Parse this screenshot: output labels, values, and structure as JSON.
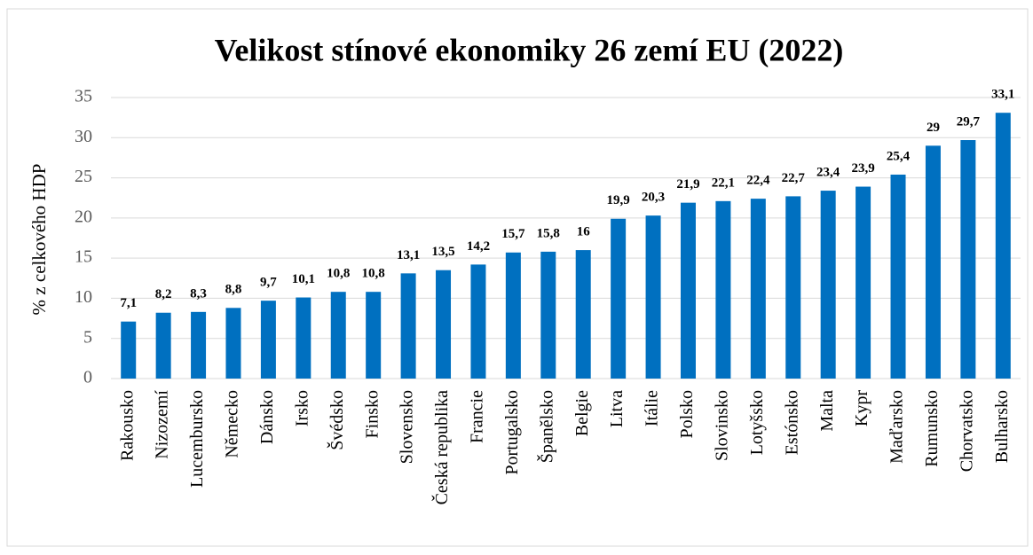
{
  "chart_data": {
    "type": "bar",
    "title": "Velikost stínové ekonomiky 26 zemí EU (2022)",
    "y_label": "% z celkového HDP",
    "categories": [
      "Rakousko",
      "Nizozemí",
      "Lucembursko",
      "Německo",
      "Dánsko",
      "Irsko",
      "Švédsko",
      "Finsko",
      "Slovensko",
      "Česká republika",
      "Francie",
      "Portugalsko",
      "Španělsko",
      "Belgie",
      "Litva",
      "Itálie",
      "Polsko",
      "Slovinsko",
      "Lotyšsko",
      "Estónsko",
      "Malta",
      "Kypr",
      "Maďarsko",
      "Rumunsko",
      "Chorvatsko",
      "Bulharsko"
    ],
    "values": [
      7.1,
      8.2,
      8.3,
      8.8,
      9.7,
      10.1,
      10.8,
      10.8,
      13.1,
      13.5,
      14.2,
      15.7,
      15.8,
      16,
      19.9,
      20.3,
      21.9,
      22.1,
      22.4,
      22.7,
      23.4,
      23.9,
      25.4,
      29,
      29.7,
      33.1
    ],
    "value_labels": [
      "7,1",
      "8,2",
      "8,3",
      "8,8",
      "9,7",
      "10,1",
      "10,8",
      "10,8",
      "13,1",
      "13,5",
      "14,2",
      "15,7",
      "15,8",
      "16",
      "19,9",
      "20,3",
      "21,9",
      "22,1",
      "22,4",
      "22,7",
      "23,4",
      "23,9",
      "25,4",
      "29",
      "29,7",
      "33,1"
    ],
    "color": "#0070c0",
    "ylim": [
      0,
      35
    ],
    "yticks": [
      0,
      5,
      10,
      15,
      20,
      25,
      30,
      35
    ],
    "grid": true
  }
}
